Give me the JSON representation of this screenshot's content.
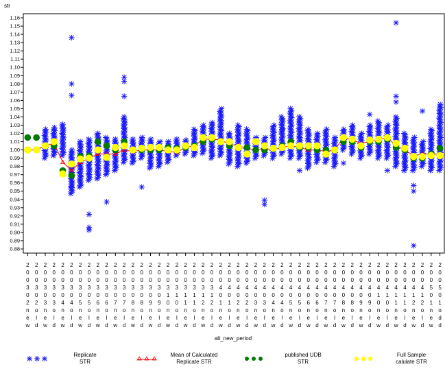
{
  "chart_data": {
    "type": "scatter",
    "ylabel": "str",
    "xlabel": "alt_new_period",
    "ylim": [
      0.88,
      1.16
    ],
    "yticks": [
      0.88,
      0.89,
      0.9,
      0.91,
      0.92,
      0.93,
      0.94,
      0.95,
      0.96,
      0.97,
      0.98,
      0.99,
      1.0,
      1.01,
      1.02,
      1.03,
      1.04,
      1.05,
      1.06,
      1.07,
      1.08,
      1.09,
      1.1,
      1.11,
      1.12,
      1.13,
      1.14,
      1.15,
      1.16
    ],
    "ytick_labels": [
      "0.88",
      "0.89",
      "0.90",
      "0.91",
      "0.92",
      "0.93",
      "0.94",
      "0.95",
      "0.96",
      "0.97",
      "0.98",
      "0.99",
      "1.00",
      "1.01",
      "1.02",
      "1.03",
      "1.04",
      "1.05",
      "1.06",
      "1.07",
      "1.08",
      "1.09",
      "1.10",
      "1.11",
      "1.12",
      "1.13",
      "1.14",
      "1.15",
      "1.16"
    ],
    "categories": [
      "20032nw",
      "20032od",
      "20032ne",
      "20033ow",
      "20034nd",
      "20034oe",
      "20035nw",
      "20035od",
      "20036ne",
      "20036ow",
      "20037nd",
      "20037oe",
      "20038nw",
      "20038od",
      "20039ne",
      "20039ow",
      "20030nd",
      "20031oe",
      "20031nw",
      "20031od",
      "20032ne",
      "20032ow",
      "20041nd",
      "20041oe",
      "20042nw",
      "20042od",
      "20043ne",
      "20043ow",
      "20044nd",
      "20044oe",
      "20045nw",
      "20045od",
      "20046ne",
      "20046ow",
      "20047nd",
      "20047oe",
      "20048nw",
      "20048od",
      "20049ne",
      "20049ow",
      "20040nd",
      "20041oe",
      "20041nw",
      "20041od",
      "20042ne",
      "20042ow",
      "20051nd",
      "20051oe"
    ],
    "xtick_rows": [
      "222222222222222222222222222222222222222222222222",
      "000000000000000000000000000000000000000000000000",
      "000000000000000000000000000000000000000000000000",
      "333333333333333333333344444444444444444444444455",
      "000000000000000011111100000000000000000011111100",
      "223344556677889900112211223344556677889900112211",
      "nononononononononononononononononononononononono",
      "eleleleleleleleleleleleleleleleleleleleleleleled",
      "wdwdwdwdwdwdwdwdwdwdwdwdwdwdwdwdwdwdwdwdwdwdwdwd"
    ],
    "series": [
      {
        "name": "Replicate STR",
        "ranges": [
          [
            1.0,
            1.0
          ],
          [
            1.0,
            1.0
          ],
          [
            0.99,
            1.025
          ],
          [
            0.993,
            1.027
          ],
          [
            0.993,
            1.031
          ],
          [
            0.947,
            1.0
          ],
          [
            0.955,
            1.01
          ],
          [
            0.963,
            1.013
          ],
          [
            0.965,
            1.02
          ],
          [
            0.97,
            1.015
          ],
          [
            0.975,
            1.013
          ],
          [
            0.985,
            1.04
          ],
          [
            0.984,
            1.013
          ],
          [
            0.99,
            1.015
          ],
          [
            0.978,
            1.013
          ],
          [
            0.98,
            1.01
          ],
          [
            0.985,
            1.01
          ],
          [
            0.993,
            1.013
          ],
          [
            0.995,
            1.012
          ],
          [
            0.993,
            1.025
          ],
          [
            0.996,
            1.03
          ],
          [
            0.99,
            1.033
          ],
          [
            0.993,
            1.05
          ],
          [
            0.983,
            1.02
          ],
          [
            0.98,
            1.03
          ],
          [
            0.984,
            1.025
          ],
          [
            0.99,
            1.015
          ],
          [
            0.993,
            1.015
          ],
          [
            0.99,
            1.03
          ],
          [
            0.995,
            1.04
          ],
          [
            0.99,
            1.05
          ],
          [
            0.99,
            1.04
          ],
          [
            0.978,
            1.025
          ],
          [
            0.985,
            1.02
          ],
          [
            0.985,
            1.025
          ],
          [
            0.98,
            1.015
          ],
          [
            1.0,
            1.025
          ],
          [
            0.995,
            1.03
          ],
          [
            0.99,
            1.02
          ],
          [
            0.995,
            1.03
          ],
          [
            0.99,
            1.035
          ],
          [
            0.99,
            1.03
          ],
          [
            0.98,
            1.04
          ],
          [
            0.975,
            1.02
          ],
          [
            0.975,
            1.015
          ],
          [
            0.98,
            1.01
          ],
          [
            0.975,
            1.025
          ],
          [
            0.975,
            1.055
          ]
        ],
        "outliers": [
          [
            5,
            1.136
          ],
          [
            5,
            1.08
          ],
          [
            5,
            1.066
          ],
          [
            5,
            0.955
          ],
          [
            7,
            0.922
          ],
          [
            7,
            0.906
          ],
          [
            7,
            0.903
          ],
          [
            9,
            0.937
          ],
          [
            11,
            1.088
          ],
          [
            11,
            1.083
          ],
          [
            11,
            1.065
          ],
          [
            13,
            0.955
          ],
          [
            27,
            0.939
          ],
          [
            27,
            0.934
          ],
          [
            29,
            1.025
          ],
          [
            31,
            0.975
          ],
          [
            36,
            0.984
          ],
          [
            39,
            1.043
          ],
          [
            41,
            0.975
          ],
          [
            42,
            1.154
          ],
          [
            42,
            1.065
          ],
          [
            42,
            1.058
          ],
          [
            44,
            0.957
          ],
          [
            44,
            0.95
          ],
          [
            44,
            0.884
          ],
          [
            45,
            1.047
          ]
        ]
      },
      {
        "name": "Mean of Calculated Replicate STR",
        "values": [
          1.0,
          1.0,
          1.005,
          1.008,
          0.985,
          0.975,
          0.985,
          0.99,
          0.995,
          0.995,
          0.995,
          1.0,
          0.998,
          1.0,
          1.0,
          1.0,
          0.998,
          0.997,
          1.003,
          1.005,
          1.013,
          1.013,
          1.012,
          1.007,
          1.005,
          1.002,
          1.0,
          1.002,
          1.0,
          1.003,
          1.005,
          1.003,
          1.0,
          1.0,
          0.998,
          1.0,
          1.015,
          1.012,
          1.008,
          1.01,
          1.012,
          1.015,
          1.005,
          1.0,
          0.993,
          0.995,
          0.995,
          0.995
        ]
      },
      {
        "name": "published UDB STR",
        "values": [
          1.015,
          1.015,
          1.005,
          1.005,
          0.975,
          0.969,
          0.992,
          0.993,
          1.01,
          1.005,
          1.0,
          1.01,
          1.0,
          1.0,
          1.0,
          1.0,
          1.003,
          1.002,
          1.003,
          1.005,
          1.01,
          1.013,
          1.01,
          1.005,
          1.003,
          1.003,
          1.0,
          1.0,
          1.002,
          1.005,
          1.01,
          1.003,
          1.003,
          1.0,
          1.0,
          1.0,
          1.01,
          1.01,
          1.003,
          1.01,
          1.01,
          1.013,
          1.003,
          1.0,
          0.99,
          0.99,
          0.995,
          1.002
        ]
      },
      {
        "name": "Full Sample calulate STR",
        "values": [
          1.0,
          1.0,
          1.005,
          1.01,
          0.971,
          0.983,
          0.989,
          0.99,
          1.0,
          0.991,
          1.003,
          1.005,
          1.0,
          1.002,
          1.003,
          1.003,
          1.0,
          1.0,
          1.005,
          1.003,
          1.015,
          1.015,
          1.01,
          1.01,
          1.003,
          0.995,
          1.01,
          1.005,
          1.002,
          1.003,
          1.005,
          1.005,
          1.005,
          1.005,
          0.995,
          1.0,
          1.015,
          1.013,
          1.005,
          1.012,
          1.013,
          1.015,
          1.008,
          1.002,
          0.992,
          0.992,
          0.993,
          0.993
        ]
      }
    ],
    "colors": {
      "replicate": "#1c1cff",
      "mean": "#ff0000",
      "published": "#007a00",
      "full_sample": "#ffff00",
      "axis": "#000000"
    },
    "grid": false,
    "legend_position": "bottom"
  },
  "legend": {
    "items": [
      {
        "label_line1": "Replicate",
        "label_line2": "STR",
        "icon": "asterisk-icon"
      },
      {
        "label_line1": "Mean of Calculated",
        "label_line2": "Replicate STR",
        "icon": "triangle-icon"
      },
      {
        "label_line1": "published UDB",
        "label_line2": "STR",
        "icon": "dot-icon"
      },
      {
        "label_line1": "Full Sample",
        "label_line2": "calulate STR",
        "icon": "dot-icon"
      }
    ]
  }
}
